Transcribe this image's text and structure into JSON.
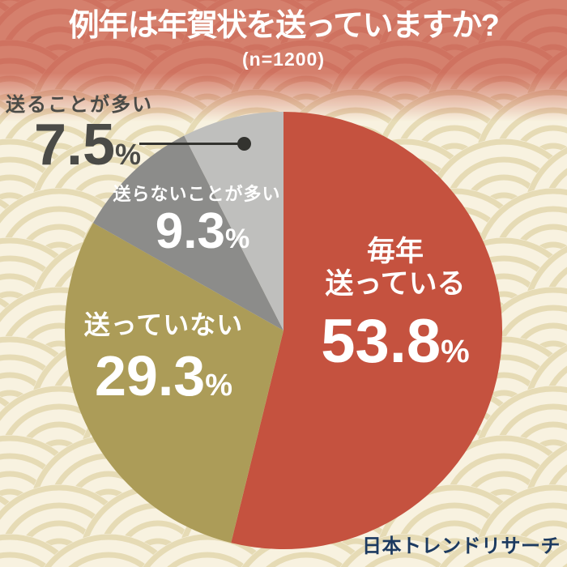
{
  "ui": {
    "percent_sign": "%",
    "credit": "日本トレンドリサーチ"
  },
  "chart_data": {
    "type": "pie",
    "title": "例年は年賀状を送っていますか?",
    "sample_label": "(n=1200)",
    "sample_size": 1200,
    "start_angle": "12-o'clock",
    "direction": "clockwise",
    "legend_position": "labels-on-slices",
    "slices": [
      {
        "label": "毎年送っている",
        "display_lines": [
          "毎年",
          "送っている"
        ],
        "value": 53.8,
        "value_text": "53.8",
        "color": "#C5523F",
        "label_color": "#FFFFFF",
        "label_placement": "inside"
      },
      {
        "label": "送っていない",
        "display_lines": [
          "送っていない"
        ],
        "value": 29.3,
        "value_text": "29.3",
        "color": "#AC9C58",
        "label_color": "#FFFFFF",
        "label_placement": "inside"
      },
      {
        "label": "送らないことが多い",
        "display_lines": [
          "送らないことが多い"
        ],
        "value": 9.3,
        "value_text": "9.3",
        "color": "#8C8C8A",
        "label_color": "#FFFFFF",
        "label_placement": "inside"
      },
      {
        "label": "送ることが多い",
        "display_lines": [
          "送ることが多い"
        ],
        "value": 7.5,
        "value_text": "7.5",
        "color": "#BFBFBD",
        "label_color": "#4B4B47",
        "label_placement": "outside-with-leader-line"
      }
    ],
    "theme": {
      "background": "#F8F2E0",
      "pattern_arc": "#E6DBB5",
      "header_background": "#D5806D",
      "header_pattern_arc": "#CF7260",
      "title_color": "#FFFFFF",
      "credit_color": "#1C3A60",
      "leader_color": "#33332F"
    }
  }
}
